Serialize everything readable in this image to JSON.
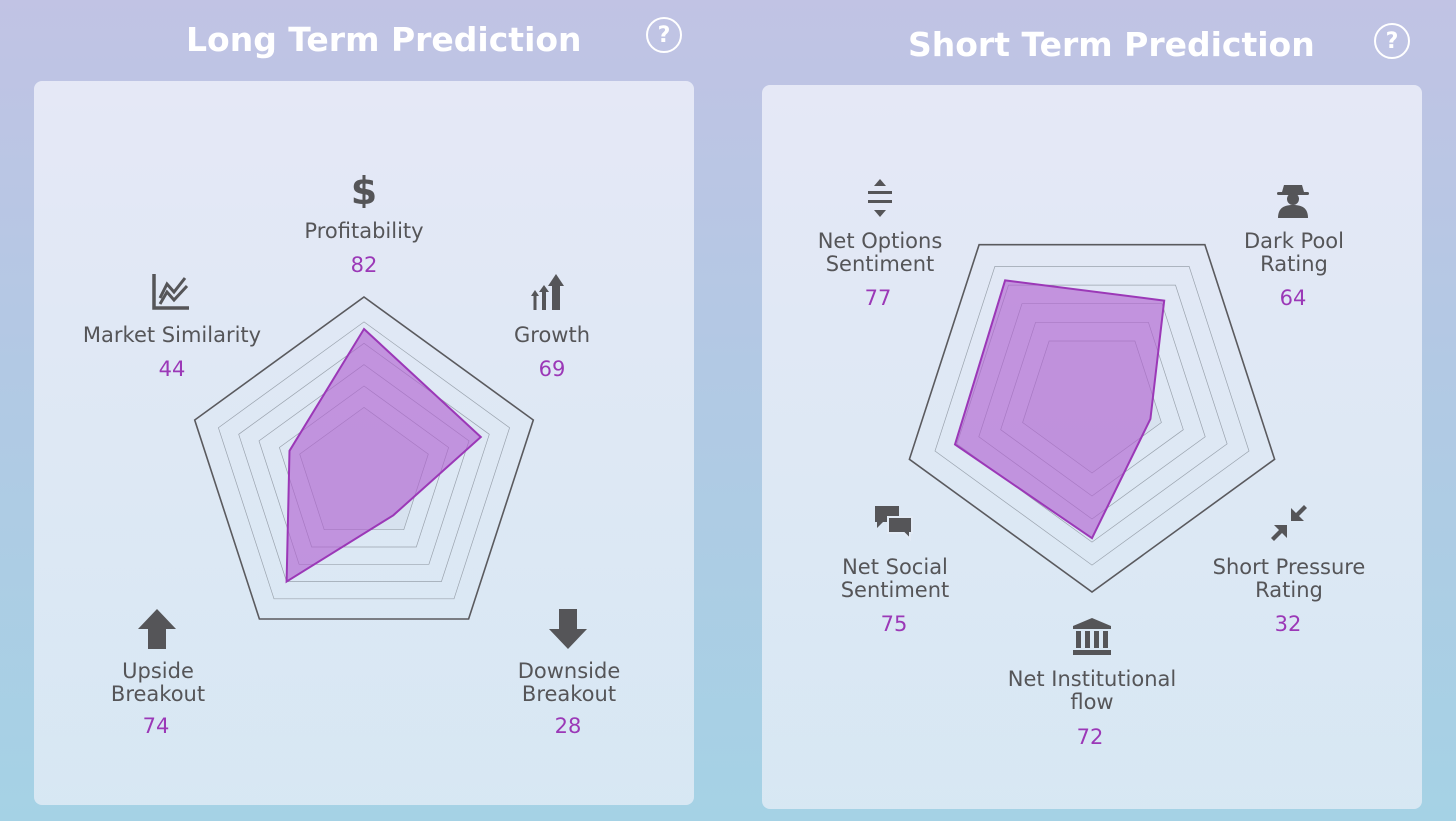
{
  "long_term": {
    "title": "Long Term Prediction",
    "help_label": "?"
  },
  "short_term": {
    "title": "Short Term Prediction",
    "help_label": "?"
  },
  "colors": {
    "accent": "#9b38b7",
    "fill": "#b05fd0",
    "label": "#555558",
    "title": "#ffffff"
  },
  "chart_data": [
    {
      "type": "radar",
      "title": "Long Term Prediction",
      "max": 100,
      "categories": [
        "Profitability",
        "Growth",
        "Downside Breakout",
        "Upside Breakout",
        "Market Similarity"
      ],
      "values": [
        82,
        69,
        28,
        74,
        44
      ],
      "icons": [
        "dollar-icon",
        "growth-arrows-icon",
        "arrow-down-icon",
        "arrow-up-icon",
        "line-chart-icon"
      ]
    },
    {
      "type": "radar",
      "title": "Short Term Prediction",
      "max": 100,
      "categories": [
        "Dark Pool Rating",
        "Short Pressure Rating",
        "Net Institutional flow",
        "Net Social Sentiment",
        "Net Options Sentiment"
      ],
      "values": [
        64,
        32,
        72,
        75,
        77
      ],
      "icons": [
        "spy-icon",
        "compress-arrows-icon",
        "bank-icon",
        "chat-bubbles-icon",
        "expand-vertical-icon"
      ]
    }
  ],
  "labels": {
    "long": {
      "profitability": "Profitability",
      "growth": "Growth",
      "downside": [
        "Downside",
        "Breakout"
      ],
      "upside": [
        "Upside",
        "Breakout"
      ],
      "market": "Market Similarity"
    },
    "short": {
      "darkpool": [
        "Dark Pool",
        "Rating"
      ],
      "shortpressure": [
        "Short Pressure",
        "Rating"
      ],
      "institutional": [
        "Net Institutional",
        "flow"
      ],
      "social": [
        "Net Social",
        "Sentiment"
      ],
      "options": [
        "Net Options",
        "Sentiment"
      ]
    }
  }
}
